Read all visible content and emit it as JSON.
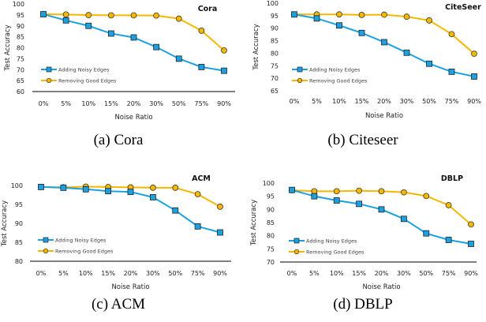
{
  "colors": {
    "adding": "#1BA1E2",
    "removing": "#F5B800",
    "marker_edge": "#222222"
  },
  "chart_data": [
    {
      "type": "line",
      "title": "Cora",
      "caption": "(a) Cora",
      "xlabel": "Noise Ratio",
      "ylabel": "Test Accuracy",
      "categories": [
        "0%",
        "5%",
        "10%",
        "15%",
        "20%",
        "30%",
        "50%",
        "75%",
        "90%"
      ],
      "ylim": [
        60,
        100
      ],
      "yticks": [
        60,
        65,
        70,
        75,
        80,
        85,
        90,
        95,
        100
      ],
      "legend": "left-lower",
      "grid": false,
      "series": [
        {
          "name": "Adding Noisy Edges",
          "marker": "square",
          "values": [
            95.3,
            92.5,
            90.0,
            86.5,
            84.7,
            80.3,
            75.0,
            71.2,
            69.5
          ]
        },
        {
          "name": "Removing Good Edges",
          "marker": "circle",
          "values": [
            95.3,
            95.2,
            94.9,
            94.8,
            94.8,
            94.7,
            93.3,
            87.8,
            78.8
          ]
        }
      ]
    },
    {
      "type": "line",
      "title": "CiteSeer",
      "caption": "(b) Citeseer",
      "xlabel": "Noise Ratio",
      "ylabel": "Test Accuracy",
      "categories": [
        "0%",
        "5%",
        "10%",
        "15%",
        "20%",
        "30%",
        "50%",
        "75%",
        "90%"
      ],
      "ylim": [
        65,
        100
      ],
      "yticks": [
        65,
        70,
        75,
        80,
        85,
        90,
        95,
        100
      ],
      "legend": "left-lower",
      "grid": false,
      "series": [
        {
          "name": "Adding Noisy Edges",
          "marker": "square",
          "values": [
            95.5,
            93.9,
            91.1,
            88.1,
            84.4,
            80.2,
            75.8,
            72.6,
            70.7
          ]
        },
        {
          "name": "Removing Good Edges",
          "marker": "circle",
          "values": [
            95.5,
            95.5,
            95.5,
            95.3,
            95.4,
            94.6,
            93.1,
            87.6,
            79.8
          ]
        }
      ]
    },
    {
      "type": "line",
      "title": "ACM",
      "caption": "(c) ACM",
      "xlabel": "Noise Ratio",
      "ylabel": "Test Accuracy",
      "categories": [
        "0%",
        "5%",
        "10%",
        "15%",
        "20%",
        "30%",
        "50%",
        "75%",
        "90%"
      ],
      "ylim": [
        80,
        100
      ],
      "yticks": [
        80,
        85,
        90,
        95,
        100
      ],
      "legend": "left-lower",
      "grid": false,
      "series": [
        {
          "name": "Adding Noisy Edges",
          "marker": "square",
          "values": [
            99.6,
            99.4,
            99.0,
            98.5,
            98.3,
            96.9,
            93.4,
            89.2,
            87.6
          ]
        },
        {
          "name": "Removing Good Edges",
          "marker": "circle",
          "values": [
            99.6,
            99.5,
            99.7,
            99.6,
            99.5,
            99.4,
            99.4,
            97.7,
            94.4
          ]
        }
      ]
    },
    {
      "type": "line",
      "title": "DBLP",
      "caption": "(d) DBLP",
      "xlabel": "Noise Ratio",
      "ylabel": "Test Accuracy",
      "categories": [
        "0%",
        "5%",
        "10%",
        "15%",
        "20%",
        "30%",
        "50%",
        "75%",
        "90%"
      ],
      "ylim": [
        70,
        100
      ],
      "yticks": [
        70,
        75,
        80,
        85,
        90,
        95,
        100
      ],
      "legend": "left-lower",
      "grid": false,
      "series": [
        {
          "name": "Adding Noisy Edges",
          "marker": "square",
          "values": [
            97.4,
            95.0,
            93.4,
            92.1,
            90.0,
            86.4,
            80.9,
            78.4,
            76.9
          ]
        },
        {
          "name": "Removing Good Edges",
          "marker": "circle",
          "values": [
            97.3,
            96.9,
            96.9,
            97.1,
            96.9,
            96.5,
            95.1,
            91.6,
            84.3
          ]
        }
      ]
    }
  ]
}
